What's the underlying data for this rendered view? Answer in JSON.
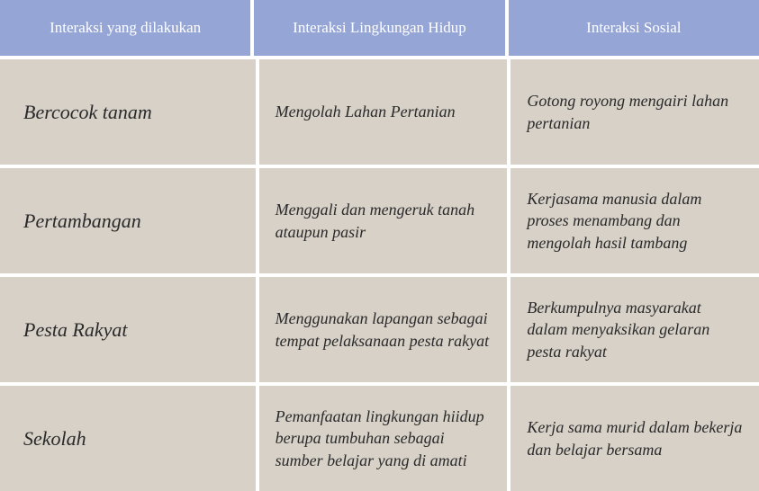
{
  "table": {
    "header_bg": "#95a5d6",
    "header_fg": "#ffffff",
    "cell_bg": "#d7d1c8",
    "cell_fg": "#2a2a2a",
    "gap_color": "#ffffff",
    "header_fontsize": 17,
    "cell_fontsize": 18,
    "rowlabel_fontsize": 22,
    "columns": [
      "Interaksi yang dilakukan",
      "Interaksi Lingkungan Hidup",
      "Interaksi Sosial"
    ],
    "rows": [
      {
        "label": "Bercocok tanam",
        "env": "Mengolah Lahan Pertanian",
        "social": "Gotong royong mengairi lahan pertanian"
      },
      {
        "label": "Pertambangan",
        "env": "Menggali dan mengeruk tanah ataupun pasir",
        "social": "Kerjasama manusia dalam proses menambang dan mengolah hasil tambang"
      },
      {
        "label": "Pesta Rakyat",
        "env": "Menggunakan lapangan sebagai tempat pelaksanaan pesta rakyat",
        "social": "Berkumpulnya masyarakat dalam menyaksikan gelaran pesta rakyat"
      },
      {
        "label": "Sekolah",
        "env": "Pemanfaatan lingkungan hiidup berupa tumbuhan sebagai sumber belajar yang di amati",
        "social": "Kerja sama murid dalam bekerja dan belajar bersama"
      }
    ]
  }
}
